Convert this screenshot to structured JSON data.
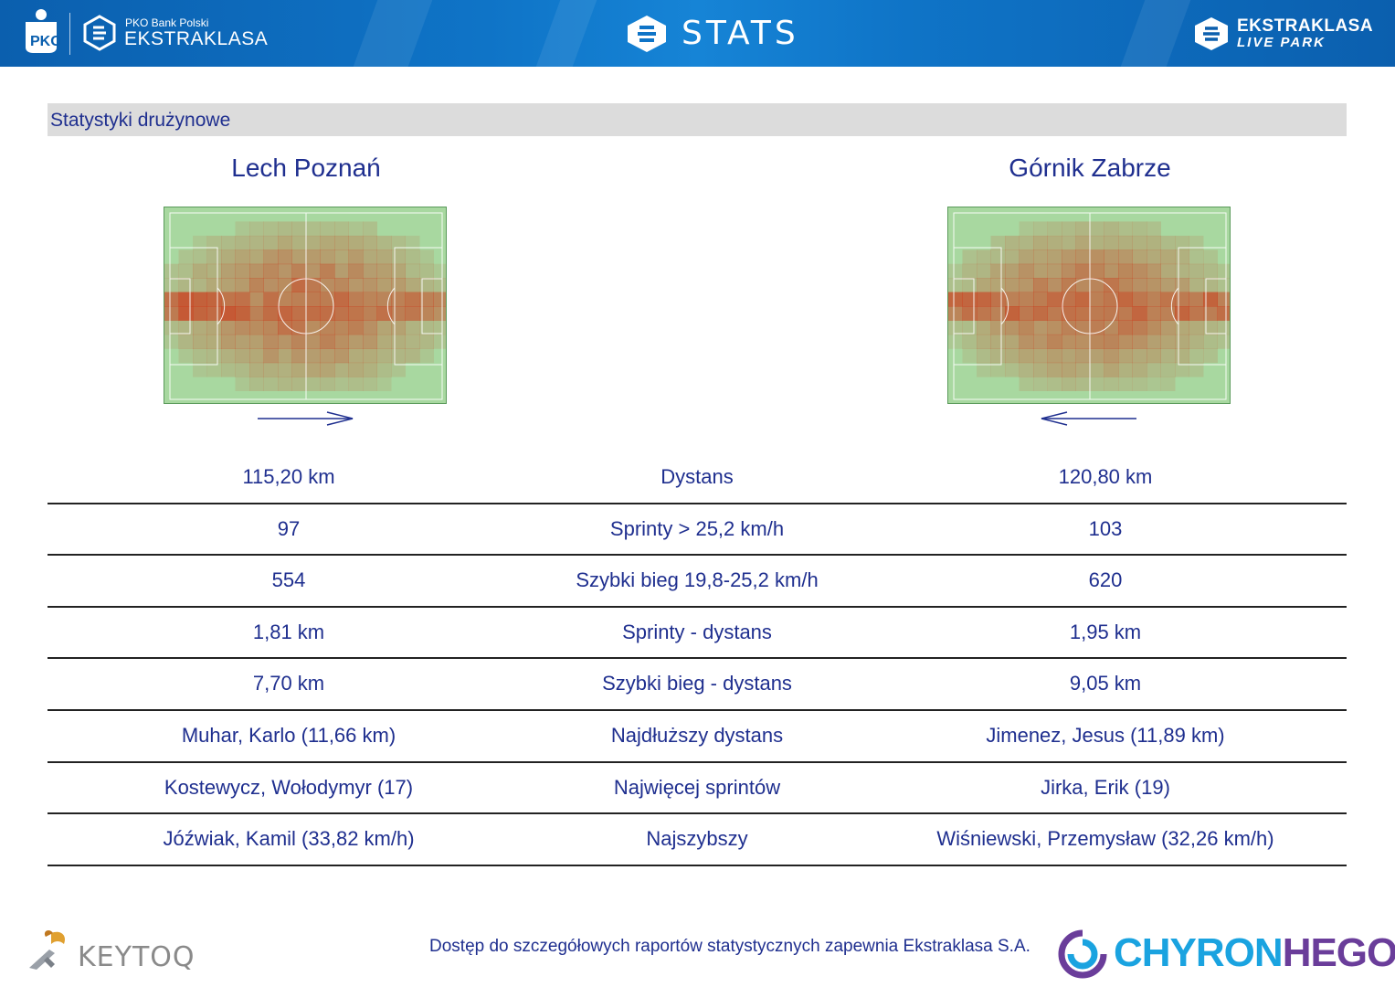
{
  "header": {
    "brand_small": "PKO Bank Polski",
    "brand_big": "EKSTRAKLASA",
    "title": "STATS",
    "live_line1": "EKSTRAKLASA",
    "live_line2": "LIVE PARK",
    "colors": {
      "primary": "#0f74c7",
      "dark": "#0b5fae",
      "text": "#ffffff"
    }
  },
  "section": {
    "title": "Statystyki drużynowe"
  },
  "teams": {
    "left": {
      "name": "Lech Poznań",
      "direction": "right"
    },
    "right": {
      "name": "Górnik Zabrze",
      "direction": "left"
    }
  },
  "stats": {
    "rows": [
      {
        "left": "115,20 km",
        "label": "Dystans",
        "right": "120,80 km"
      },
      {
        "left": "97",
        "label": "Sprinty > 25,2 km/h",
        "right": "103"
      },
      {
        "left": "554",
        "label": "Szybki bieg 19,8-25,2 km/h",
        "right": "620"
      },
      {
        "left": "1,81 km",
        "label": "Sprinty - dystans",
        "right": "1,95 km"
      },
      {
        "left": "7,70 km",
        "label": "Szybki bieg - dystans",
        "right": "9,05 km"
      },
      {
        "left": "Muhar, Karlo (11,66 km)",
        "label": "Najdłuższy dystans",
        "right": "Jimenez, Jesus (11,89 km)"
      },
      {
        "left": "Kostewycz, Wołodymyr (17)",
        "label": "Najwięcej sprintów",
        "right": "Jirka, Erik (19)"
      },
      {
        "left": "Jóźwiak, Kamil (33,82 km/h)",
        "label": "Najszybszy",
        "right": "Wiśniewski, Przemysław (32,26 km/h)"
      }
    ]
  },
  "footer": {
    "keytoq": "KEYTOQ",
    "note": "Dostęp do szczegółowych raportów statystycznych zapewnia Ekstraklasa S.A.",
    "chyron_a": "CHYRON",
    "chyron_b": "HEGO"
  },
  "colors": {
    "text": "#1f2f8f",
    "pitch": "#a8d8a0",
    "heat": "#cc3a1a",
    "section_bar": "#dcdcdc"
  }
}
